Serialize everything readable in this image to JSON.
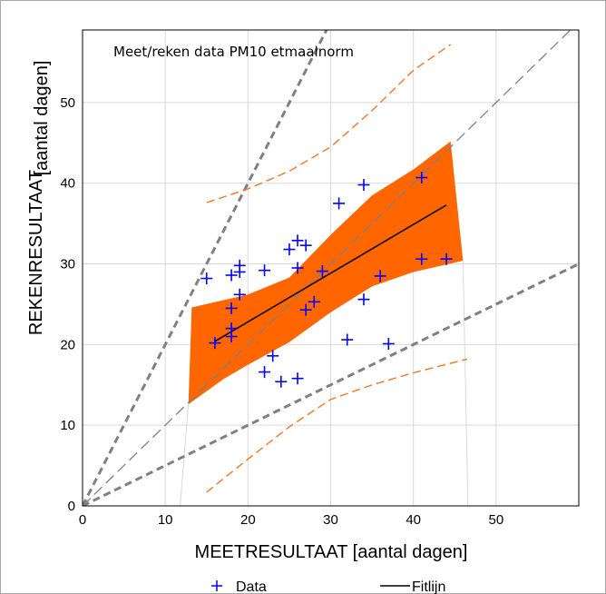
{
  "chart_data": {
    "type": "scatter",
    "annotation": "Meet/reken data PM10 etmaalnorm",
    "xlabel": "MEETRESULTAAT  [aantal dagen]",
    "ylabel_main": "REKENRESULTAAT",
    "ylabel_unit": "[aantal dagen]",
    "xlim": [
      0,
      60
    ],
    "ylim": [
      0,
      59
    ],
    "x_ticks": [
      0,
      10,
      20,
      30,
      40,
      50
    ],
    "y_ticks": [
      0,
      10,
      20,
      30,
      40,
      50
    ],
    "grid": true,
    "legend_position": "bottom",
    "legend": [
      {
        "label": "Data",
        "marker": "+",
        "color": "#0000ff"
      },
      {
        "label": "Fitlijn",
        "line": "solid",
        "color": "#000000"
      }
    ],
    "points": [
      [
        15,
        28.2
      ],
      [
        16,
        20.2
      ],
      [
        18,
        21.0
      ],
      [
        18,
        22.0
      ],
      [
        18,
        24.5
      ],
      [
        18,
        28.6
      ],
      [
        19,
        26.2
      ],
      [
        19,
        29.0
      ],
      [
        19,
        29.8
      ],
      [
        22,
        29.2
      ],
      [
        22,
        16.6
      ],
      [
        23,
        18.6
      ],
      [
        24,
        15.4
      ],
      [
        25,
        31.8
      ],
      [
        26,
        15.8
      ],
      [
        26,
        29.5
      ],
      [
        26,
        32.9
      ],
      [
        27,
        32.3
      ],
      [
        27,
        24.3
      ],
      [
        28,
        25.3
      ],
      [
        29,
        29.1
      ],
      [
        31,
        37.5
      ],
      [
        32,
        20.6
      ],
      [
        34,
        39.8
      ],
      [
        34,
        25.6
      ],
      [
        36,
        28.5
      ],
      [
        37,
        20.1
      ],
      [
        41,
        40.7
      ],
      [
        41,
        30.6
      ],
      [
        44,
        30.6
      ]
    ],
    "fit_line": {
      "x": [
        16,
        44
      ],
      "y": [
        20.4,
        37.3
      ]
    },
    "confidence_band": {
      "upper": [
        [
          13.2,
          24.6
        ],
        [
          20,
          26.2
        ],
        [
          25,
          28.3
        ],
        [
          30,
          33.6
        ],
        [
          35,
          38.5
        ],
        [
          40,
          41.7
        ],
        [
          44.5,
          45.2
        ]
      ],
      "lower": [
        [
          46,
          30.4
        ],
        [
          40,
          29.0
        ],
        [
          35,
          27.2
        ],
        [
          30,
          24.0
        ],
        [
          25,
          20.3
        ],
        [
          20,
          17.5
        ],
        [
          17,
          15.7
        ],
        [
          12.8,
          12.6
        ]
      ]
    },
    "prediction_band_upper": [
      [
        15,
        37.6
      ],
      [
        20,
        39.3
      ],
      [
        25,
        41.5
      ],
      [
        30,
        44.5
      ],
      [
        35,
        49
      ],
      [
        40,
        54
      ],
      [
        44.5,
        57.2
      ]
    ],
    "prediction_band_lower": [
      [
        15,
        1.7
      ],
      [
        20,
        5.8
      ],
      [
        25,
        9.8
      ],
      [
        30,
        13.2
      ],
      [
        35,
        15
      ],
      [
        40,
        16.5
      ],
      [
        46.5,
        18.2
      ]
    ],
    "reference_lines": [
      {
        "style": "dashed-thick",
        "slope": 2
      },
      {
        "style": "dashed-thin",
        "slope": 1
      },
      {
        "style": "dashed-thick",
        "slope": 0.5
      }
    ],
    "colors": {
      "band": "#ff6600",
      "band_edge": "#ed7d31",
      "points": "#0000ff",
      "fit": "#000000",
      "reference": "#808080",
      "grid": "#d9d9d9"
    }
  }
}
